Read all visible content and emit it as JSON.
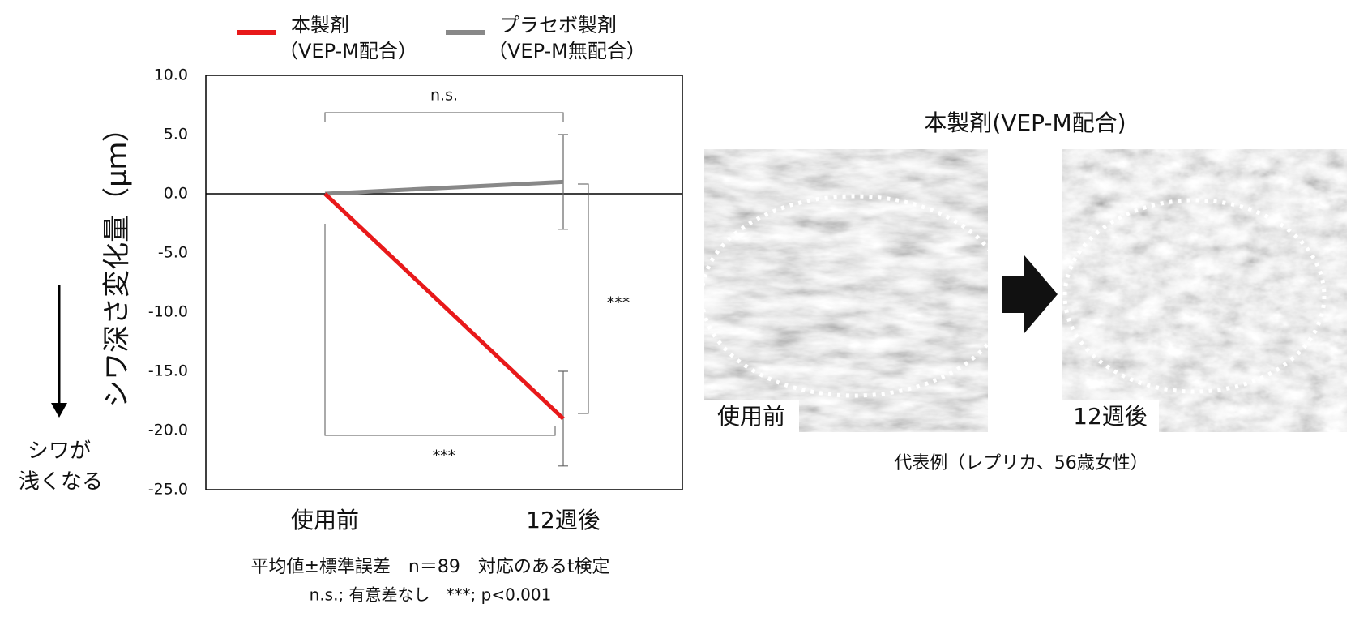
{
  "chart_data": {
    "type": "line",
    "categories": [
      "使用前",
      "12週後"
    ],
    "series": [
      {
        "name": "本製剤",
        "subname": "（VEP-M配合）",
        "color": "#e8191a",
        "values": [
          0,
          -19
        ],
        "errors": [
          null,
          4
        ]
      },
      {
        "name": "プラセボ製剤",
        "subname": "（VEP-M無配合）",
        "color": "#888888",
        "values": [
          0,
          1
        ],
        "errors": [
          null,
          4
        ]
      }
    ],
    "ylim": [
      -25,
      10
    ],
    "yticks": [
      {
        "value": -25,
        "label": "-25.0"
      },
      {
        "value": -20,
        "label": "-20.0"
      },
      {
        "value": -15,
        "label": "-15.0"
      },
      {
        "value": -10,
        "label": "-10.0"
      },
      {
        "value": -5,
        "label": "-5.0"
      },
      {
        "value": 0,
        "label": "0.0"
      },
      {
        "value": 5,
        "label": "5.0"
      },
      {
        "value": 10,
        "label": "10.0"
      }
    ],
    "ylabel": "シワ深さ変化量（μｍ）",
    "arrow_label": [
      "シワが",
      "浅くなる"
    ],
    "annotations": {
      "top": "n.s.",
      "bottom": "***",
      "right": "***"
    },
    "footnotes": [
      "平均値±標準誤差　n＝89　対応のあるt検定",
      "n.s.; 有意差なし　***; p<0.001"
    ]
  },
  "photo_panel": {
    "title": "本製剤(VEP-M配合)",
    "labels": [
      "使用前",
      "12週後"
    ],
    "caption": "代表例（レプリカ、56歳女性）"
  }
}
